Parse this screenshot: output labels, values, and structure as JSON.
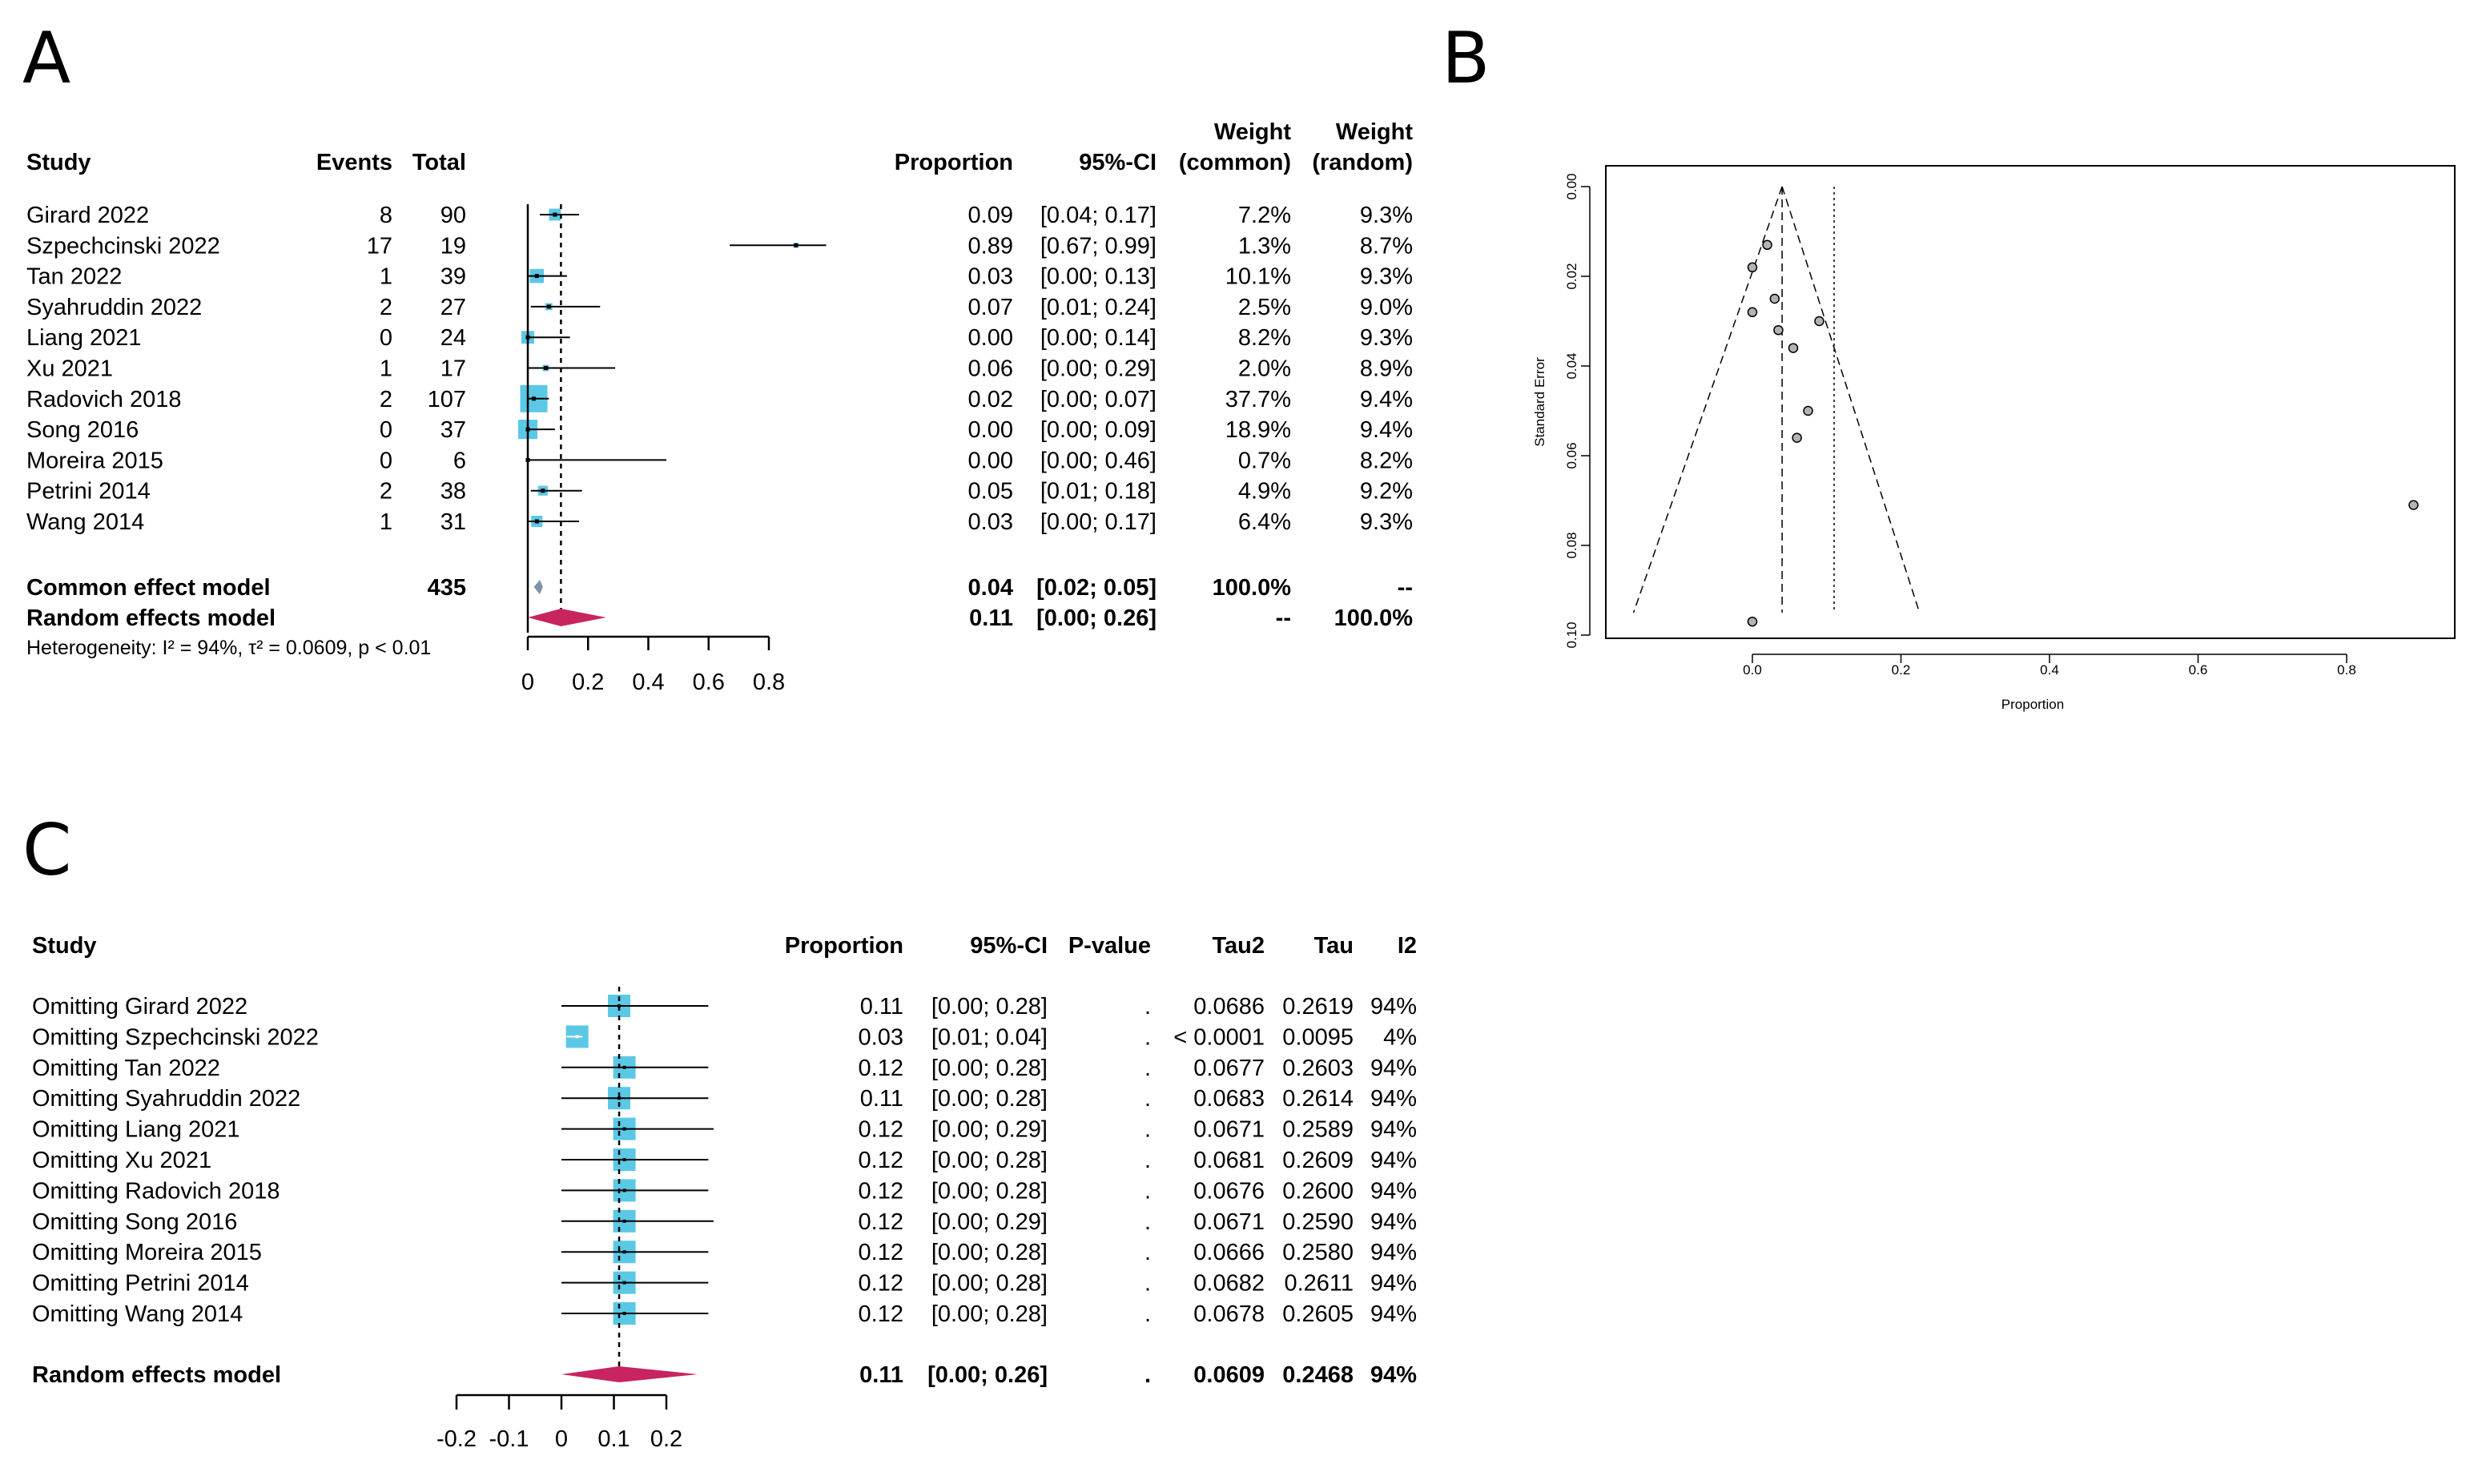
{
  "panels": {
    "a": {
      "label": "A",
      "headers": {
        "study": "Study",
        "events": "Events",
        "total": "Total",
        "proportion": "Proportion",
        "ci": "95%-CI",
        "weight_common_1": "Weight",
        "weight_common_2": "(common)",
        "weight_random_1": "Weight",
        "weight_random_2": "(random)"
      },
      "common": {
        "label": "Common effect model",
        "total": "435",
        "prop": "0.04",
        "ci": "[0.02; 0.05]",
        "w_common": "100.0%",
        "w_random": "--"
      },
      "random": {
        "label": "Random effects model",
        "prop": "0.11",
        "ci": "[0.00; 0.26]",
        "w_common": "--",
        "w_random": "100.0%"
      },
      "heterogeneity": "Heterogeneity: I² = 94%, τ² = 0.0609, p < 0.01"
    },
    "b": {
      "label": "B"
    },
    "c": {
      "label": "C",
      "headers": {
        "study": "Study",
        "proportion": "Proportion",
        "ci": "95%-CI",
        "pvalue": "P-value",
        "tau2": "Tau2",
        "tau": "Tau",
        "i2": "I2"
      },
      "random": {
        "label": "Random effects model",
        "prop": "0.11",
        "ci": "[0.00; 0.26]",
        "pvalue": ".",
        "tau2": "0.0609",
        "tau": "0.2468",
        "i2": "94%"
      }
    }
  },
  "chart_data": [
    {
      "type": "forest",
      "panel": "A",
      "title": "",
      "x_ticks": [
        "0",
        "0.2",
        "0.4",
        "0.6",
        "0.8"
      ],
      "xlim": [
        0,
        0.8
      ],
      "rows": [
        {
          "study": "Girard  2022",
          "events": 8,
          "total": 90,
          "proportion": 0.09,
          "lower": 0.04,
          "upper": 0.17,
          "ci": "[0.04; 0.17]",
          "weight_common": "7.2%",
          "weight_random": "9.3%"
        },
        {
          "study": "Szpechcinski 2022",
          "events": 17,
          "total": 19,
          "proportion": 0.89,
          "lower": 0.67,
          "upper": 0.99,
          "ci": "[0.67; 0.99]",
          "weight_common": "1.3%",
          "weight_random": "8.7%"
        },
        {
          "study": "Tan 2022",
          "events": 1,
          "total": 39,
          "proportion": 0.03,
          "lower": 0.0,
          "upper": 0.13,
          "ci": "[0.00; 0.13]",
          "weight_common": "10.1%",
          "weight_random": "9.3%"
        },
        {
          "study": "Syahruddin 2022",
          "events": 2,
          "total": 27,
          "proportion": 0.07,
          "lower": 0.01,
          "upper": 0.24,
          "ci": "[0.01; 0.24]",
          "weight_common": "2.5%",
          "weight_random": "9.0%"
        },
        {
          "study": "Liang 2021",
          "events": 0,
          "total": 24,
          "proportion": 0.0,
          "lower": 0.0,
          "upper": 0.14,
          "ci": "[0.00; 0.14]",
          "weight_common": "8.2%",
          "weight_random": "9.3%"
        },
        {
          "study": "Xu 2021",
          "events": 1,
          "total": 17,
          "proportion": 0.06,
          "lower": 0.0,
          "upper": 0.29,
          "ci": "[0.00; 0.29]",
          "weight_common": "2.0%",
          "weight_random": "8.9%"
        },
        {
          "study": "Radovich 2018",
          "events": 2,
          "total": 107,
          "proportion": 0.02,
          "lower": 0.0,
          "upper": 0.07,
          "ci": "[0.00; 0.07]",
          "weight_common": "37.7%",
          "weight_random": "9.4%"
        },
        {
          "study": "Song 2016",
          "events": 0,
          "total": 37,
          "proportion": 0.0,
          "lower": 0.0,
          "upper": 0.09,
          "ci": "[0.00; 0.09]",
          "weight_common": "18.9%",
          "weight_random": "9.4%"
        },
        {
          "study": "Moreira 2015",
          "events": 0,
          "total": 6,
          "proportion": 0.0,
          "lower": 0.0,
          "upper": 0.46,
          "ci": "[0.00; 0.46]",
          "weight_common": "0.7%",
          "weight_random": "8.2%"
        },
        {
          "study": "Petrini 2014",
          "events": 2,
          "total": 38,
          "proportion": 0.05,
          "lower": 0.01,
          "upper": 0.18,
          "ci": "[0.01; 0.18]",
          "weight_common": "4.9%",
          "weight_random": "9.2%"
        },
        {
          "study": "Wang 2014",
          "events": 1,
          "total": 31,
          "proportion": 0.03,
          "lower": 0.0,
          "upper": 0.17,
          "ci": "[0.00; 0.17]",
          "weight_common": "6.4%",
          "weight_random": "9.3%"
        }
      ],
      "common_effect": {
        "estimate": 0.04,
        "lower": 0.02,
        "upper": 0.05
      },
      "random_effects": {
        "estimate": 0.11,
        "lower": 0.0,
        "upper": 0.26
      },
      "colors": {
        "square": "#5bc8e6",
        "diamond_random": "#c8245f",
        "diamond_common": "#7f93a8"
      }
    },
    {
      "type": "scatter",
      "panel": "B",
      "title": "",
      "xlabel": "Proportion",
      "ylabel": "Standard Error",
      "x_ticks": [
        "0.0",
        "0.2",
        "0.4",
        "0.6",
        "0.8"
      ],
      "y_ticks": [
        "0.00",
        "0.02",
        "0.04",
        "0.06",
        "0.08",
        "0.10"
      ],
      "xlim": [
        -0.19,
        0.95
      ],
      "ylim": [
        0.1,
        0
      ],
      "points": [
        {
          "x": 0.02,
          "y": 0.013
        },
        {
          "x": 0.0,
          "y": 0.018
        },
        {
          "x": 0.03,
          "y": 0.025
        },
        {
          "x": 0.0,
          "y": 0.028
        },
        {
          "x": 0.09,
          "y": 0.03
        },
        {
          "x": 0.035,
          "y": 0.032
        },
        {
          "x": 0.055,
          "y": 0.036
        },
        {
          "x": 0.075,
          "y": 0.05
        },
        {
          "x": 0.06,
          "y": 0.056
        },
        {
          "x": 0.89,
          "y": 0.071
        },
        {
          "x": 0.0,
          "y": 0.097
        }
      ],
      "funnel_apex": {
        "x": 0.04,
        "y": 0.0
      },
      "funnel_base": {
        "left": -0.16,
        "right": 0.225,
        "y": 0.095
      },
      "common_line_x": 0.04,
      "random_line_x": 0.11,
      "grid": false
    },
    {
      "type": "forest",
      "panel": "C",
      "title": "",
      "x_ticks": [
        "-0.2",
        "-0.1",
        "0",
        "0.1",
        "0.2"
      ],
      "xlim": [
        -0.2,
        0.2
      ],
      "rows": [
        {
          "study": "Omitting Girard  2022",
          "proportion": 0.11,
          "lower": 0.0,
          "upper": 0.28,
          "ci": "[0.00; 0.28]",
          "pvalue": ".",
          "tau2": "0.0686",
          "tau": "0.2619",
          "i2": "94%"
        },
        {
          "study": "Omitting Szpechcinski 2022",
          "proportion": 0.03,
          "lower": 0.01,
          "upper": 0.04,
          "ci": "[0.01; 0.04]",
          "pvalue": ".",
          "tau2": "< 0.0001",
          "tau": "0.0095",
          "i2": "4%"
        },
        {
          "study": "Omitting Tan 2022",
          "proportion": 0.12,
          "lower": 0.0,
          "upper": 0.28,
          "ci": "[0.00; 0.28]",
          "pvalue": ".",
          "tau2": "0.0677",
          "tau": "0.2603",
          "i2": "94%"
        },
        {
          "study": "Omitting Syahruddin 2022",
          "proportion": 0.11,
          "lower": 0.0,
          "upper": 0.28,
          "ci": "[0.00; 0.28]",
          "pvalue": ".",
          "tau2": "0.0683",
          "tau": "0.2614",
          "i2": "94%"
        },
        {
          "study": "Omitting Liang 2021",
          "proportion": 0.12,
          "lower": 0.0,
          "upper": 0.29,
          "ci": "[0.00; 0.29]",
          "pvalue": ".",
          "tau2": "0.0671",
          "tau": "0.2589",
          "i2": "94%"
        },
        {
          "study": "Omitting Xu 2021",
          "proportion": 0.12,
          "lower": 0.0,
          "upper": 0.28,
          "ci": "[0.00; 0.28]",
          "pvalue": ".",
          "tau2": "0.0681",
          "tau": "0.2609",
          "i2": "94%"
        },
        {
          "study": "Omitting Radovich 2018",
          "proportion": 0.12,
          "lower": 0.0,
          "upper": 0.28,
          "ci": "[0.00; 0.28]",
          "pvalue": ".",
          "tau2": "0.0676",
          "tau": "0.2600",
          "i2": "94%"
        },
        {
          "study": "Omitting Song 2016",
          "proportion": 0.12,
          "lower": 0.0,
          "upper": 0.29,
          "ci": "[0.00; 0.29]",
          "pvalue": ".",
          "tau2": "0.0671",
          "tau": "0.2590",
          "i2": "94%"
        },
        {
          "study": "Omitting Moreira 2015",
          "proportion": 0.12,
          "lower": 0.0,
          "upper": 0.28,
          "ci": "[0.00; 0.28]",
          "pvalue": ".",
          "tau2": "0.0666",
          "tau": "0.2580",
          "i2": "94%"
        },
        {
          "study": "Omitting Petrini 2014",
          "proportion": 0.12,
          "lower": 0.0,
          "upper": 0.28,
          "ci": "[0.00; 0.28]",
          "pvalue": ".",
          "tau2": "0.0682",
          "tau": "0.2611",
          "i2": "94%"
        },
        {
          "study": "Omitting Wang 2014",
          "proportion": 0.12,
          "lower": 0.0,
          "upper": 0.28,
          "ci": "[0.00; 0.28]",
          "pvalue": ".",
          "tau2": "0.0678",
          "tau": "0.2605",
          "i2": "94%"
        }
      ],
      "random_effects": {
        "estimate": 0.11,
        "lower": 0.0,
        "upper": 0.26
      },
      "colors": {
        "square": "#5bc8e6",
        "diamond_random": "#c8245f"
      }
    }
  ]
}
